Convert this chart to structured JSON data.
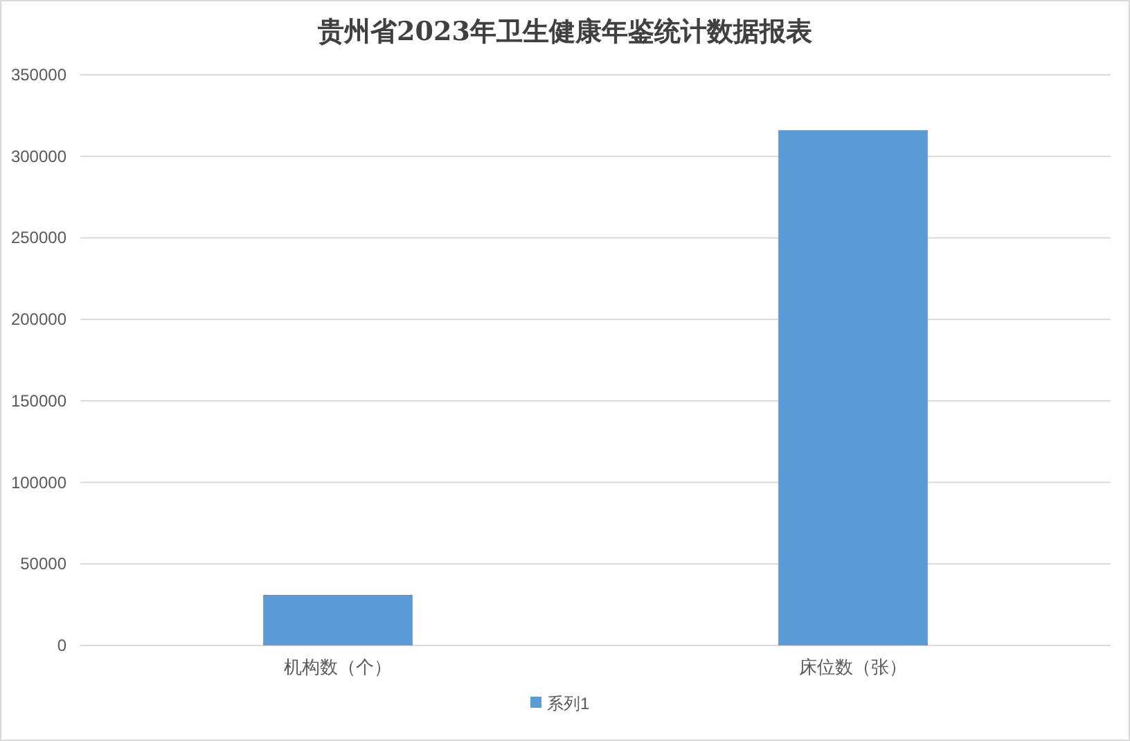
{
  "chart_data": {
    "type": "bar",
    "title": "贵州省2023年卫生健康年鉴统计数据报表",
    "categories": [
      "机构数（个）",
      "床位数（张）"
    ],
    "series": [
      {
        "name": "系列1",
        "color": "#5b9bd5",
        "values": [
          31000,
          316000
        ]
      }
    ],
    "ylim": [
      0,
      350000
    ],
    "yticks": [
      0,
      50000,
      100000,
      150000,
      200000,
      250000,
      300000,
      350000
    ],
    "grid": "y",
    "legend": "bottom"
  }
}
